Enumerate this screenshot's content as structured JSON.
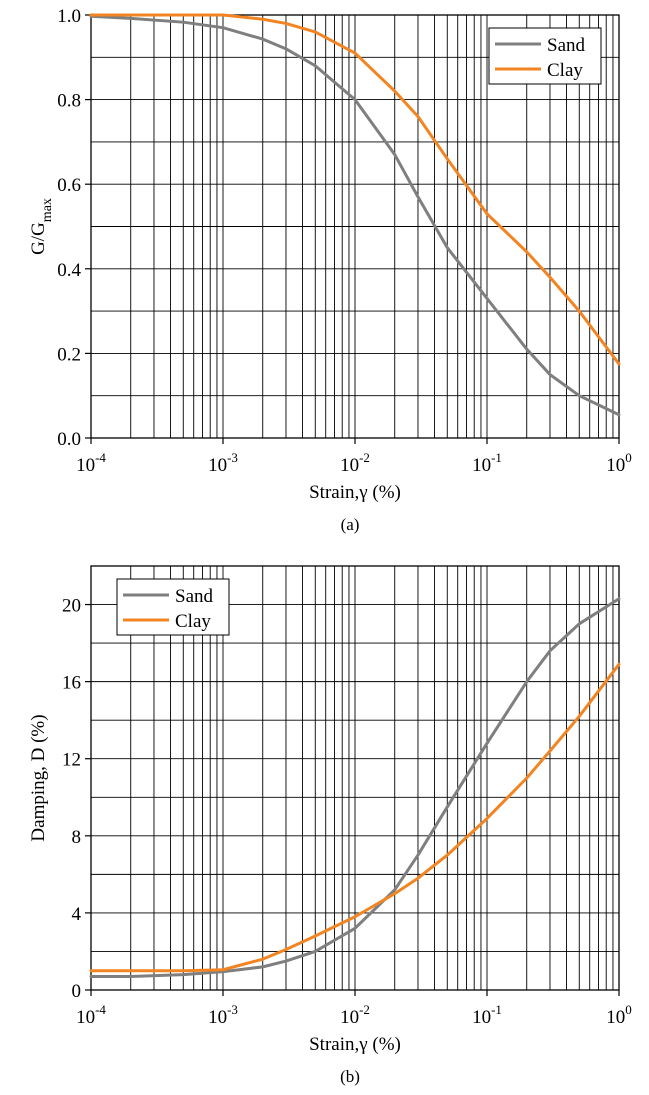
{
  "chart_data": [
    {
      "id": "a",
      "type": "line",
      "caption": "(a)",
      "xscale": "log",
      "xlim": [
        0.0001,
        1
      ],
      "xticks": [
        {
          "base": "10",
          "exp": "-4"
        },
        {
          "base": "10",
          "exp": "-3"
        },
        {
          "base": "10",
          "exp": "-2"
        },
        {
          "base": "10",
          "exp": "-1"
        },
        {
          "base": "10",
          "exp": "0"
        }
      ],
      "xlabel": "Strain,γ (%)",
      "ylabel": {
        "main": "G/G",
        "sub": "max"
      },
      "ylim": [
        0,
        1
      ],
      "yticks": [
        "0.0",
        "0.2",
        "0.4",
        "0.6",
        "0.8",
        "1.0"
      ],
      "grid": true,
      "legend_position": "top-right",
      "colors": {
        "Sand": "#7f7f7f",
        "Clay": "#f28522"
      },
      "series": [
        {
          "name": "Sand",
          "x": [
            0.0001,
            0.0002,
            0.0005,
            0.001,
            0.002,
            0.003,
            0.005,
            0.01,
            0.02,
            0.03,
            0.05,
            0.1,
            0.2,
            0.3,
            0.5,
            1
          ],
          "y": [
            0.997,
            0.992,
            0.983,
            0.97,
            0.943,
            0.92,
            0.88,
            0.8,
            0.67,
            0.57,
            0.45,
            0.33,
            0.21,
            0.15,
            0.1,
            0.055
          ]
        },
        {
          "name": "Clay",
          "x": [
            0.0001,
            0.0003,
            0.001,
            0.002,
            0.003,
            0.005,
            0.01,
            0.02,
            0.03,
            0.05,
            0.1,
            0.2,
            0.3,
            0.5,
            1
          ],
          "y": [
            1.0,
            1.0,
            1.0,
            0.99,
            0.98,
            0.96,
            0.91,
            0.82,
            0.76,
            0.66,
            0.53,
            0.44,
            0.38,
            0.3,
            0.175
          ]
        }
      ]
    },
    {
      "id": "b",
      "type": "line",
      "caption": "(b)",
      "xscale": "log",
      "xlim": [
        0.0001,
        1
      ],
      "xticks": [
        {
          "base": "10",
          "exp": "-4"
        },
        {
          "base": "10",
          "exp": "-3"
        },
        {
          "base": "10",
          "exp": "-2"
        },
        {
          "base": "10",
          "exp": "-1"
        },
        {
          "base": "10",
          "exp": "0"
        }
      ],
      "xlabel": "Strain,γ (%)",
      "ylabel": {
        "main": "Damping, D (%)",
        "sub": ""
      },
      "ylim": [
        0,
        22
      ],
      "yticks": [
        "0",
        "4",
        "8",
        "12",
        "16",
        "20"
      ],
      "grid": true,
      "legend_position": "top-left",
      "colors": {
        "Sand": "#7f7f7f",
        "Clay": "#f28522"
      },
      "series": [
        {
          "name": "Sand",
          "x": [
            0.0001,
            0.0002,
            0.0005,
            0.001,
            0.002,
            0.003,
            0.005,
            0.01,
            0.02,
            0.03,
            0.05,
            0.1,
            0.2,
            0.3,
            0.5,
            1
          ],
          "y": [
            0.7,
            0.7,
            0.8,
            0.95,
            1.2,
            1.5,
            2.0,
            3.2,
            5.2,
            7.0,
            9.5,
            12.8,
            16.0,
            17.6,
            19.0,
            20.3
          ]
        },
        {
          "name": "Clay",
          "x": [
            0.0001,
            0.0002,
            0.0005,
            0.001,
            0.002,
            0.003,
            0.005,
            0.01,
            0.02,
            0.03,
            0.05,
            0.1,
            0.2,
            0.3,
            0.5,
            1
          ],
          "y": [
            1.0,
            1.0,
            1.0,
            1.05,
            1.6,
            2.1,
            2.8,
            3.8,
            5.0,
            5.8,
            7.0,
            8.9,
            11.0,
            12.4,
            14.2,
            16.9
          ]
        }
      ]
    }
  ]
}
